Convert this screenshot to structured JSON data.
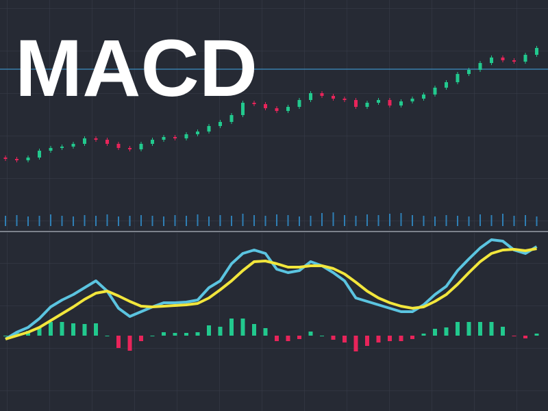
{
  "chart_data": [
    {
      "type": "candlestick",
      "title": "MACD",
      "open": [
        15,
        14,
        13,
        15,
        20,
        22,
        23,
        25,
        29,
        28,
        25,
        22,
        21,
        25,
        28,
        30,
        29,
        32,
        34,
        38,
        41,
        46,
        55,
        54,
        51,
        49,
        52,
        57,
        62,
        60,
        58,
        57,
        52,
        55,
        57,
        53,
        56,
        58,
        61,
        66,
        70,
        76,
        79,
        84,
        88,
        86,
        85,
        90
      ],
      "close": [
        14,
        13,
        15,
        20,
        22,
        23,
        25,
        29,
        28,
        25,
        22,
        21,
        25,
        28,
        30,
        29,
        32,
        34,
        38,
        41,
        46,
        55,
        54,
        51,
        49,
        52,
        57,
        62,
        60,
        58,
        57,
        52,
        55,
        57,
        53,
        56,
        58,
        61,
        66,
        70,
        76,
        79,
        84,
        88,
        86,
        85,
        90,
        95
      ],
      "high": [
        16.5,
        15.5,
        16.5,
        21.5,
        23.5,
        24.5,
        26.5,
        30.5,
        30.5,
        29.5,
        26.5,
        23.5,
        26.5,
        29.5,
        31.5,
        31.5,
        33.5,
        35.5,
        39.5,
        42.5,
        47.5,
        56.5,
        56.5,
        55.5,
        52.5,
        53.5,
        58.5,
        63.5,
        63.5,
        61.5,
        59.5,
        58.5,
        56.5,
        58.5,
        58.5,
        57.5,
        59.5,
        62.5,
        67.5,
        71.5,
        77.5,
        80.5,
        85.5,
        89.5,
        89.5,
        87.5,
        91.5,
        96.5
      ],
      "low": [
        12.5,
        11.5,
        11.5,
        13.5,
        18.5,
        20.5,
        21.5,
        23.5,
        26.5,
        23.5,
        20.5,
        19.5,
        19.5,
        23.5,
        26.5,
        27.5,
        27.5,
        30.5,
        32.5,
        36.5,
        39.5,
        44.5,
        52.5,
        49.5,
        47.5,
        47.5,
        50.5,
        55.5,
        58.5,
        56.5,
        55.5,
        50.5,
        50.5,
        53.5,
        51.5,
        51.5,
        54.5,
        56.5,
        59.5,
        64.5,
        68.5,
        74.5,
        77.5,
        82.5,
        84.5,
        83.5,
        83.5,
        88.5
      ],
      "up_color": "#22c98e",
      "down_color": "#e8245a",
      "hline": {
        "value": 79.5,
        "color": "#3d8fc4"
      },
      "ylim": [
        -20,
        130
      ],
      "grid": true
    },
    {
      "type": "bar",
      "color": "#2f7fb5",
      "values": [
        15,
        16,
        14,
        15,
        17,
        15,
        14,
        16,
        15,
        17,
        14,
        15,
        16,
        15,
        14,
        16,
        15,
        17,
        14,
        16,
        15,
        18,
        16,
        15,
        17,
        16,
        14,
        15,
        19,
        20,
        16,
        15,
        17,
        16,
        18,
        19,
        16,
        15,
        14,
        16,
        15,
        14,
        17,
        16,
        18,
        15,
        16,
        14
      ],
      "ylim": [
        0,
        40
      ],
      "grid": true
    },
    {
      "type": "line",
      "series": [
        {
          "color": "#5bc4e0",
          "values": [
            -0.5,
            0.5,
            1.2,
            2.5,
            4.2,
            5.2,
            6.0,
            7.0,
            8.0,
            6.5,
            4.0,
            2.8,
            3.5,
            4.2,
            4.8,
            4.8,
            4.9,
            5.2,
            7.0,
            8.0,
            10.5,
            12.0,
            12.5,
            12.0,
            9.7,
            9.2,
            9.5,
            10.8,
            10.2,
            9.2,
            8.0,
            5.5,
            5.0,
            4.5,
            4.0,
            3.5,
            3.5,
            4.5,
            6.0,
            7.2,
            9.5,
            11.2,
            12.8,
            14.0,
            13.8,
            12.5,
            12.0,
            13.0
          ]
        },
        {
          "color": "#f2e63c",
          "values": [
            -0.5,
            0,
            0.5,
            1.2,
            2.2,
            3.2,
            4.2,
            5.3,
            6.2,
            6.5,
            5.8,
            5.0,
            4.3,
            4.2,
            4.3,
            4.4,
            4.5,
            4.7,
            5.5,
            6.7,
            8.0,
            9.5,
            10.8,
            10.9,
            10.5,
            10.0,
            10.0,
            10.2,
            10.2,
            9.8,
            9.0,
            7.8,
            6.5,
            5.5,
            4.8,
            4.3,
            4.0,
            4.2,
            5.0,
            6.0,
            7.5,
            9.2,
            10.8,
            12.0,
            12.5,
            12.6,
            12.4,
            12.7
          ]
        }
      ],
      "ylim": [
        -3,
        15
      ],
      "grid": true
    },
    {
      "type": "histogram",
      "color": "#22c98e",
      "negative_color": "#e8245a",
      "values": [
        0,
        0.5,
        0.7,
        1.3,
        2.0,
        2.0,
        1.8,
        1.7,
        1.8,
        0,
        -1.8,
        -2.2,
        -0.8,
        0,
        0.5,
        0.4,
        0.4,
        0.5,
        1.5,
        1.3,
        2.5,
        2.5,
        1.7,
        1.1,
        -0.8,
        -0.8,
        -0.5,
        0.6,
        0,
        -0.6,
        -1.0,
        -2.3,
        -1.5,
        -1.0,
        -0.8,
        -0.8,
        -0.5,
        0.3,
        1.0,
        1.2,
        2.0,
        2.0,
        2.0,
        2.0,
        1.3,
        -0.1,
        -0.4,
        0.3
      ],
      "ylim": [
        -3,
        15
      ]
    }
  ]
}
